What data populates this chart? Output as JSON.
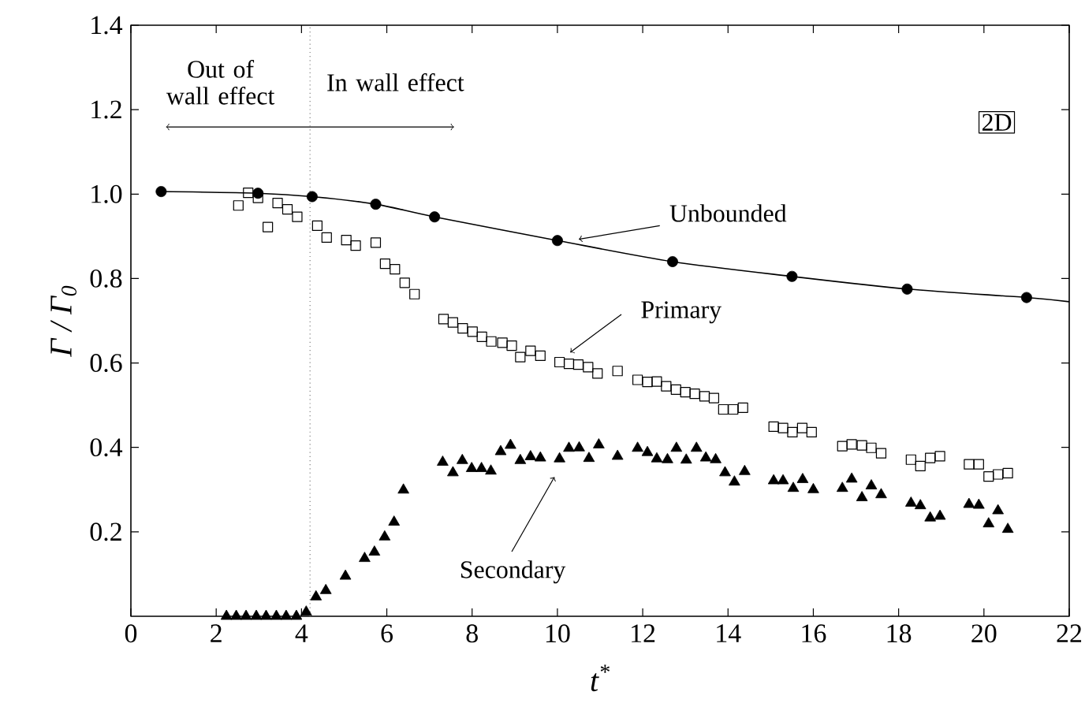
{
  "chart_data": {
    "type": "scatter",
    "xlabel": "t$^{*}$",
    "ylabel": "Γ / Γ$_{0}$",
    "xlim": [
      0,
      22
    ],
    "ylim": [
      0,
      1.4
    ],
    "xticks": [
      0,
      2,
      4,
      6,
      8,
      10,
      12,
      14,
      16,
      18,
      20,
      22
    ],
    "yticks": [
      0.2,
      0.4,
      0.6,
      0.8,
      {
        "value": 1,
        "label": "1.0"
      },
      1.2,
      1.4
    ],
    "grid": false,
    "annotations": [
      "Out of wall effect",
      "In wall effect",
      "2D"
    ],
    "ref_lines": [
      {
        "axis": "x",
        "value": 4.2,
        "color": "#808080",
        "line_style": "dotted"
      }
    ],
    "series": [
      {
        "type": "line",
        "color": "#000000",
        "marker": "none",
        "line_style": "solid",
        "x": [
          0.71,
          2.98,
          4.25,
          5.74,
          7.12,
          10.0,
          12.7,
          15.5,
          18.2,
          21.0,
          22.0
        ],
        "values": [
          1.006,
          1.002,
          0.994,
          0.976,
          0.946,
          0.89,
          0.84,
          0.805,
          0.775,
          0.755,
          0.745
        ]
      },
      {
        "name": "Unbounded",
        "color": "#000000",
        "marker": "circle",
        "x": [
          0.71,
          2.98,
          4.25,
          5.74,
          7.12,
          10.0,
          12.7,
          15.5,
          18.2,
          21.0
        ],
        "values": [
          1.006,
          1.002,
          0.994,
          0.976,
          0.946,
          0.89,
          0.84,
          0.805,
          0.775,
          0.755
        ]
      },
      {
        "name": "Primary",
        "color": "#000000",
        "marker": "square",
        "x": [
          2.52,
          2.75,
          2.98,
          3.21,
          3.44,
          3.67,
          3.9,
          4.37,
          4.59,
          5.05,
          5.27,
          5.74,
          5.96,
          6.19,
          6.42,
          6.65,
          7.33,
          7.55,
          7.78,
          8.01,
          8.23,
          8.45,
          8.71,
          8.93,
          9.13,
          9.37,
          9.6,
          10.05,
          10.27,
          10.49,
          10.72,
          10.94,
          11.41,
          11.88,
          12.11,
          12.33,
          12.55,
          12.78,
          13.0,
          13.22,
          13.45,
          13.67,
          13.89,
          14.12,
          14.35,
          15.07,
          15.29,
          15.51,
          15.74,
          15.96,
          16.68,
          16.9,
          17.14,
          17.36,
          17.59,
          18.29,
          18.51,
          18.74,
          18.97,
          19.65,
          19.88,
          20.11,
          20.33,
          20.56
        ],
        "values": [
          0.973,
          1.003,
          0.991,
          0.922,
          0.979,
          0.964,
          0.946,
          0.925,
          0.897,
          0.891,
          0.878,
          0.885,
          0.835,
          0.822,
          0.79,
          0.763,
          0.704,
          0.696,
          0.682,
          0.674,
          0.662,
          0.651,
          0.648,
          0.641,
          0.614,
          0.629,
          0.617,
          0.602,
          0.598,
          0.596,
          0.59,
          0.575,
          0.581,
          0.56,
          0.555,
          0.556,
          0.545,
          0.537,
          0.531,
          0.527,
          0.521,
          0.517,
          0.49,
          0.49,
          0.494,
          0.449,
          0.446,
          0.436,
          0.446,
          0.436,
          0.403,
          0.407,
          0.405,
          0.399,
          0.386,
          0.371,
          0.356,
          0.375,
          0.379,
          0.36,
          0.36,
          0.331,
          0.336,
          0.339
        ]
      },
      {
        "name": "Secondary",
        "color": "#000000",
        "marker": "triangle",
        "x": [
          2.24,
          2.47,
          2.7,
          2.94,
          3.17,
          3.41,
          3.64,
          3.88,
          4.11,
          4.34,
          4.57,
          5.03,
          5.48,
          5.71,
          5.95,
          6.17,
          6.39,
          7.31,
          7.55,
          7.77,
          7.99,
          8.22,
          8.44,
          8.67,
          8.9,
          9.13,
          9.37,
          9.6,
          10.05,
          10.27,
          10.51,
          10.74,
          10.97,
          11.41,
          11.88,
          12.11,
          12.33,
          12.58,
          12.79,
          13.02,
          13.26,
          13.48,
          13.71,
          13.93,
          14.15,
          14.39,
          15.07,
          15.29,
          15.53,
          15.75,
          16.0,
          16.68,
          16.9,
          17.14,
          17.36,
          17.59,
          18.29,
          18.51,
          18.74,
          18.97,
          19.65,
          19.88,
          20.11,
          20.33,
          20.56
        ],
        "values": [
          0,
          0,
          0,
          0,
          0,
          0,
          0,
          0,
          0.01,
          0.046,
          0.061,
          0.095,
          0.137,
          0.152,
          0.188,
          0.223,
          0.299,
          0.365,
          0.34,
          0.369,
          0.35,
          0.35,
          0.344,
          0.39,
          0.405,
          0.369,
          0.378,
          0.375,
          0.373,
          0.398,
          0.399,
          0.374,
          0.406,
          0.379,
          0.398,
          0.388,
          0.373,
          0.371,
          0.398,
          0.37,
          0.398,
          0.375,
          0.371,
          0.34,
          0.318,
          0.343,
          0.321,
          0.321,
          0.303,
          0.324,
          0.3,
          0.303,
          0.325,
          0.281,
          0.309,
          0.288,
          0.268,
          0.262,
          0.233,
          0.237,
          0.265,
          0.263,
          0.219,
          0.25,
          0.206
        ]
      }
    ]
  }
}
